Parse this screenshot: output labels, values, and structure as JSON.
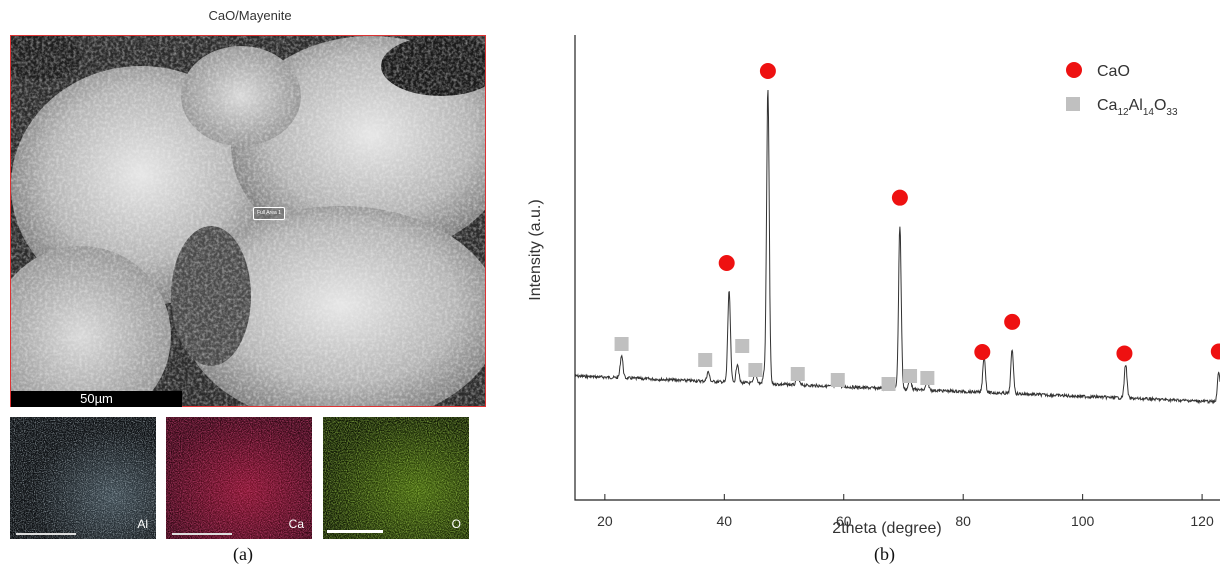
{
  "panel_a": {
    "title": "CaO/Mayenite",
    "roi_label": "Full Area 1",
    "scale_bar": "50µm",
    "maps": [
      {
        "element": "Al",
        "color": "#9fb8c8"
      },
      {
        "element": "Ca",
        "color": "#c0183c"
      },
      {
        "element": "O",
        "color": "#7dc21e"
      }
    ],
    "caption": "(a)"
  },
  "panel_b": {
    "caption": "(b)",
    "legend": [
      {
        "label": "CaO",
        "marker": "red-circle",
        "color": "#ee1111"
      },
      {
        "label_main": "Ca",
        "sub1": "12",
        "mid1": "Al",
        "sub2": "14",
        "mid2": "O",
        "sub3": "33",
        "marker": "gray-square",
        "color": "#c0c0c0"
      }
    ]
  },
  "chart_data": {
    "type": "line",
    "title": "",
    "xlabel": "2theta (degree)",
    "ylabel": "Intensity (a.u.)",
    "xlim": [
      15,
      123
    ],
    "xticks": [
      20,
      40,
      60,
      80,
      100,
      120
    ],
    "series": [
      {
        "peaks": [
          {
            "x": 22.8,
            "h": 0.12
          },
          {
            "x": 37.3,
            "h": 0.05
          },
          {
            "x": 40.8,
            "h": 0.48
          },
          {
            "x": 42.2,
            "h": 0.1
          },
          {
            "x": 45.2,
            "h": 0.06
          },
          {
            "x": 46.7,
            "h": 0.05
          },
          {
            "x": 47.3,
            "h": 1.55
          },
          {
            "x": 52.3,
            "h": 0.05
          },
          {
            "x": 59.1,
            "h": 0.04
          },
          {
            "x": 68.0,
            "h": 0.04
          },
          {
            "x": 69.4,
            "h": 0.86
          },
          {
            "x": 71.1,
            "h": 0.06
          },
          {
            "x": 74.0,
            "h": 0.05
          },
          {
            "x": 83.5,
            "h": 0.19
          },
          {
            "x": 88.2,
            "h": 0.23
          },
          {
            "x": 107.2,
            "h": 0.18
          },
          {
            "x": 122.8,
            "h": 0.16
          }
        ]
      }
    ],
    "markers": {
      "CaO": [
        40.4,
        47.3,
        69.4,
        83.2,
        88.2,
        107.0,
        122.8
      ],
      "Ca12Al14O33": [
        22.8,
        36.8,
        43.0,
        45.2,
        52.3,
        59.0,
        67.5,
        71.1,
        74.0
      ]
    }
  }
}
